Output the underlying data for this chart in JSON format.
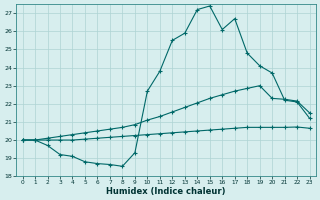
{
  "xlabel": "Humidex (Indice chaleur)",
  "bg_color": "#d7eeee",
  "grid_color": "#aed4d4",
  "line_color": "#006868",
  "ylim": [
    18,
    27.5
  ],
  "xlim": [
    -0.5,
    23.5
  ],
  "yticks": [
    18,
    19,
    20,
    21,
    22,
    23,
    24,
    25,
    26,
    27
  ],
  "xticks": [
    0,
    1,
    2,
    3,
    4,
    5,
    6,
    7,
    8,
    9,
    10,
    11,
    12,
    13,
    14,
    15,
    16,
    17,
    18,
    19,
    20,
    21,
    22,
    23
  ],
  "line1_x": [
    0,
    1,
    2,
    3,
    4,
    5,
    6,
    7,
    8,
    9,
    10,
    11,
    12,
    13,
    14,
    15,
    16,
    17,
    18,
    19,
    20,
    21,
    22,
    23
  ],
  "line1_y": [
    20.0,
    20.0,
    19.7,
    19.2,
    19.1,
    18.8,
    18.7,
    18.65,
    18.55,
    19.3,
    22.7,
    23.8,
    25.5,
    25.9,
    27.2,
    27.4,
    26.1,
    26.7,
    24.8,
    24.1,
    23.7,
    22.2,
    22.1,
    21.2
  ],
  "line2_x": [
    0,
    1,
    2,
    3,
    4,
    5,
    6,
    7,
    8,
    9,
    10,
    11,
    12,
    13,
    14,
    15,
    16,
    17,
    18,
    19,
    20,
    21,
    22,
    23
  ],
  "line2_y": [
    20.0,
    20.0,
    20.1,
    20.2,
    20.3,
    20.4,
    20.5,
    20.6,
    20.7,
    20.85,
    21.1,
    21.3,
    21.55,
    21.8,
    22.05,
    22.3,
    22.5,
    22.7,
    22.85,
    23.0,
    22.3,
    22.25,
    22.15,
    21.5
  ],
  "line3_x": [
    0,
    1,
    2,
    3,
    4,
    5,
    6,
    7,
    8,
    9,
    10,
    11,
    12,
    13,
    14,
    15,
    16,
    17,
    18,
    19,
    20,
    21,
    22,
    23
  ],
  "line3_y": [
    20.0,
    20.0,
    20.0,
    20.0,
    20.0,
    20.05,
    20.1,
    20.15,
    20.2,
    20.25,
    20.3,
    20.35,
    20.4,
    20.45,
    20.5,
    20.55,
    20.6,
    20.65,
    20.7,
    20.7,
    20.7,
    20.7,
    20.72,
    20.65
  ]
}
